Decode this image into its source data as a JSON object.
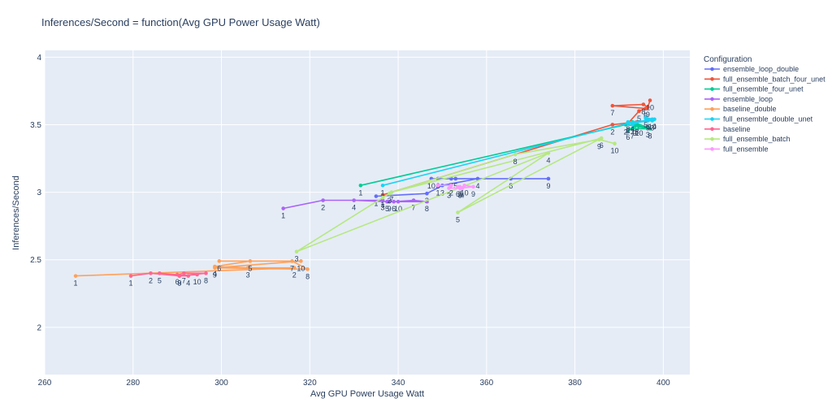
{
  "chart_data": {
    "type": "line",
    "title": "Inferences/Second = function(Avg GPU Power Usage Watt)",
    "xlabel": "Avg GPU Power Usage Watt",
    "ylabel": "Inferences/Second",
    "xlim": [
      260,
      406
    ],
    "ylim": [
      1.65,
      4.05
    ],
    "xticks": [
      260,
      280,
      300,
      320,
      340,
      360,
      380,
      400
    ],
    "yticks": [
      2,
      2.5,
      3,
      3.5,
      4
    ],
    "grid": true,
    "legend_title": "Configuration",
    "legend_position": "right",
    "series": [
      {
        "name": "ensemble_loop_double",
        "color": "#636efa",
        "points": [
          [
            335.0,
            2.97,
            "1"
          ],
          [
            346.5,
            2.99,
            "2"
          ],
          [
            350.0,
            3.05,
            "3"
          ],
          [
            358.0,
            3.1,
            "4"
          ],
          [
            353.0,
            3.1,
            "5"
          ],
          [
            349.0,
            3.1,
            "6"
          ],
          [
            352.0,
            3.1,
            "7"
          ],
          [
            365.5,
            3.1,
            "8"
          ],
          [
            374.0,
            3.1,
            "9"
          ],
          [
            347.5,
            3.1,
            "10"
          ]
        ]
      },
      {
        "name": "full_ensemble_batch_four_unet",
        "color": "#ef553b",
        "points": [
          [
            336.5,
            2.98,
            "1"
          ],
          [
            388.5,
            3.5,
            "2"
          ],
          [
            394.0,
            3.52,
            "3"
          ],
          [
            392.0,
            3.51,
            "4"
          ],
          [
            394.5,
            3.6,
            "5"
          ],
          [
            396.0,
            3.62,
            "6"
          ],
          [
            388.5,
            3.64,
            "7"
          ],
          [
            395.5,
            3.65,
            "8"
          ],
          [
            396.5,
            3.63,
            "9"
          ],
          [
            397.0,
            3.68,
            "10"
          ]
        ]
      },
      {
        "name": "full_ensemble_four_unet",
        "color": "#00cc96",
        "points": [
          [
            331.5,
            3.05,
            "1"
          ],
          [
            391.5,
            3.5,
            "2"
          ],
          [
            396.5,
            3.48,
            "3"
          ],
          [
            393.0,
            3.52,
            "4"
          ],
          [
            394.0,
            3.5,
            "5"
          ],
          [
            392.0,
            3.46,
            "6"
          ],
          [
            393.0,
            3.47,
            "7"
          ],
          [
            397.0,
            3.47,
            "8"
          ],
          [
            393.5,
            3.49,
            "9"
          ],
          [
            394.5,
            3.49,
            "10"
          ]
        ]
      },
      {
        "name": "ensemble_loop",
        "color": "#ab63fa",
        "points": [
          [
            314.0,
            2.88,
            "1"
          ],
          [
            323.0,
            2.94,
            "2"
          ],
          [
            336.5,
            2.94,
            "3"
          ],
          [
            330.0,
            2.94,
            "4"
          ],
          [
            337.5,
            2.93,
            "5"
          ],
          [
            339.0,
            2.93,
            "6"
          ],
          [
            343.5,
            2.94,
            "7"
          ],
          [
            346.5,
            2.93,
            "8"
          ],
          [
            338.0,
            2.93,
            "9"
          ],
          [
            340.0,
            2.93,
            "10"
          ]
        ]
      },
      {
        "name": "baseline_double",
        "color": "#ffa15a",
        "points": [
          [
            267.0,
            2.38,
            "1"
          ],
          [
            316.5,
            2.44,
            "2"
          ],
          [
            306.0,
            2.44,
            "3"
          ],
          [
            298.5,
            2.45,
            "4"
          ],
          [
            306.5,
            2.49,
            "5"
          ],
          [
            299.5,
            2.49,
            "6"
          ],
          [
            316.0,
            2.49,
            "7"
          ],
          [
            319.5,
            2.43,
            "8"
          ],
          [
            298.5,
            2.44,
            "9"
          ],
          [
            318.0,
            2.49,
            "10"
          ]
        ]
      },
      {
        "name": "full_ensemble_double_unet",
        "color": "#19d3f3",
        "points": [
          [
            336.5,
            3.05,
            "1"
          ],
          [
            392.0,
            3.51,
            "2"
          ],
          [
            397.5,
            3.53,
            "3"
          ],
          [
            398.0,
            3.54,
            "4"
          ],
          [
            396.0,
            3.55,
            "5"
          ],
          [
            396.5,
            3.54,
            "6"
          ],
          [
            393.0,
            3.5,
            "7"
          ],
          [
            392.0,
            3.52,
            "8"
          ],
          [
            396.5,
            3.53,
            "9"
          ],
          [
            397.5,
            3.54,
            "10"
          ]
        ]
      },
      {
        "name": "baseline",
        "color": "#ff6692",
        "points": [
          [
            279.5,
            2.38,
            "1"
          ],
          [
            284.0,
            2.4,
            "2"
          ],
          [
            290.5,
            2.38,
            "3"
          ],
          [
            292.5,
            2.38,
            "4"
          ],
          [
            286.0,
            2.4,
            "5"
          ],
          [
            290.0,
            2.39,
            "6"
          ],
          [
            291.5,
            2.4,
            "7"
          ],
          [
            296.5,
            2.4,
            "8"
          ],
          [
            290.5,
            2.38,
            "9"
          ],
          [
            294.5,
            2.39,
            "10"
          ]
        ]
      },
      {
        "name": "full_ensemble_batch",
        "color": "#b6e880",
        "points": [
          [
            336.5,
            2.96,
            "1"
          ],
          [
            338.0,
            2.99,
            "2"
          ],
          [
            317.0,
            2.56,
            "3"
          ],
          [
            374.0,
            3.29,
            "4"
          ],
          [
            353.5,
            2.85,
            "5"
          ],
          [
            386.0,
            3.4,
            "6"
          ],
          [
            338.5,
            3.0,
            "7"
          ],
          [
            366.5,
            3.28,
            "8"
          ],
          [
            385.5,
            3.39,
            "9"
          ],
          [
            389.0,
            3.36,
            "10"
          ]
        ]
      },
      {
        "name": "full_ensemble",
        "color": "#ff97ff",
        "points": [
          [
            349.0,
            3.05,
            "1"
          ],
          [
            352.0,
            3.05,
            "2"
          ],
          [
            351.5,
            3.03,
            "3"
          ],
          [
            354.5,
            3.03,
            "4"
          ],
          [
            354.0,
            3.03,
            "5"
          ],
          [
            353.5,
            3.04,
            "6"
          ],
          [
            354.0,
            3.04,
            "7"
          ],
          [
            354.0,
            3.03,
            "8"
          ],
          [
            357.0,
            3.04,
            "9"
          ],
          [
            355.0,
            3.05,
            "10"
          ]
        ]
      }
    ]
  }
}
